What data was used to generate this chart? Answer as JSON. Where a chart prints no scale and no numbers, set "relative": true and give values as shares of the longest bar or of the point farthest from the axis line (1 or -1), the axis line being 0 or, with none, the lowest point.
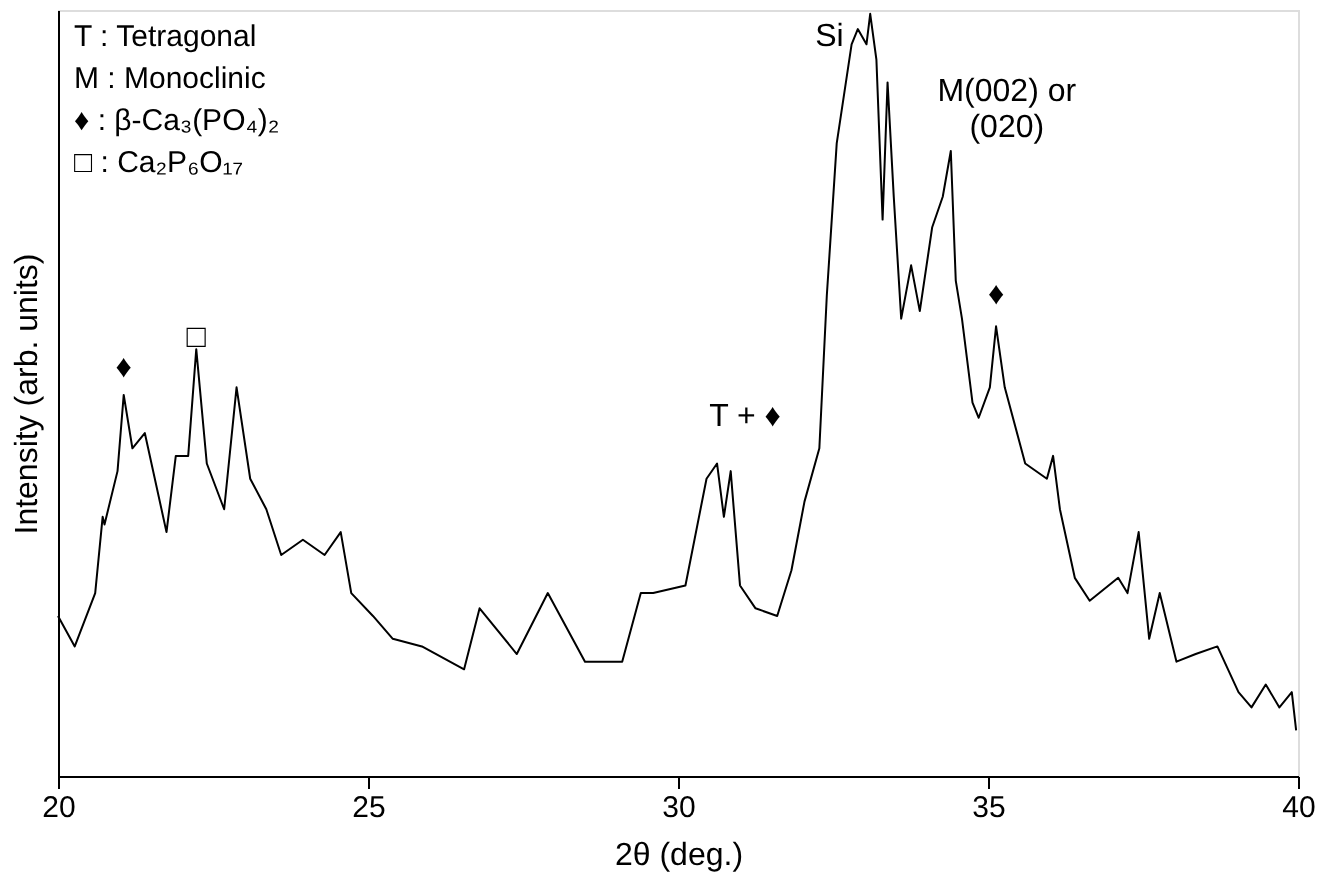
{
  "chart_data": {
    "type": "line",
    "relative": true,
    "xlabel": "2θ (deg.)",
    "ylabel": "Intensity (arb. units)",
    "xlim": [
      20,
      40
    ],
    "xticks": [
      20,
      25,
      30,
      35,
      40
    ],
    "grid": false,
    "legend": false,
    "x": [
      20.0,
      20.27,
      20.6,
      20.72,
      20.75,
      20.96,
      21.06,
      21.2,
      21.4,
      21.75,
      21.9,
      22.1,
      22.23,
      22.4,
      22.68,
      22.88,
      23.1,
      23.36,
      23.6,
      23.95,
      24.3,
      24.56,
      24.73,
      25.08,
      25.4,
      25.87,
      26.55,
      26.8,
      27.4,
      27.9,
      28.5,
      29.1,
      29.4,
      29.6,
      30.12,
      30.46,
      30.63,
      30.74,
      30.85,
      31.0,
      31.25,
      31.6,
      31.83,
      32.04,
      32.28,
      32.4,
      32.56,
      32.8,
      32.9,
      33.04,
      33.1,
      33.2,
      33.3,
      33.38,
      33.48,
      33.6,
      33.76,
      33.9,
      34.1,
      34.27,
      34.4,
      34.48,
      34.58,
      34.75,
      34.85,
      35.03,
      35.13,
      35.27,
      35.6,
      35.95,
      36.05,
      36.16,
      36.4,
      36.64,
      37.1,
      37.25,
      37.43,
      37.6,
      37.77,
      38.04,
      38.35,
      38.7,
      39.04,
      39.25,
      39.48,
      39.7,
      39.9,
      39.97
    ],
    "series": [
      {
        "color": "#000000",
        "values": [
          0.21,
          0.17,
          0.24,
          0.34,
          0.33,
          0.4,
          0.5,
          0.43,
          0.45,
          0.32,
          0.42,
          0.42,
          0.56,
          0.41,
          0.35,
          0.51,
          0.39,
          0.35,
          0.29,
          0.31,
          0.29,
          0.32,
          0.24,
          0.21,
          0.18,
          0.17,
          0.14,
          0.22,
          0.16,
          0.24,
          0.15,
          0.15,
          0.24,
          0.24,
          0.25,
          0.39,
          0.41,
          0.34,
          0.4,
          0.25,
          0.22,
          0.21,
          0.27,
          0.36,
          0.43,
          0.63,
          0.83,
          0.96,
          0.98,
          0.96,
          1.0,
          0.94,
          0.73,
          0.91,
          0.76,
          0.6,
          0.67,
          0.61,
          0.72,
          0.76,
          0.82,
          0.65,
          0.6,
          0.49,
          0.47,
          0.51,
          0.59,
          0.51,
          0.41,
          0.39,
          0.42,
          0.35,
          0.26,
          0.23,
          0.26,
          0.24,
          0.32,
          0.18,
          0.24,
          0.15,
          0.16,
          0.17,
          0.11,
          0.09,
          0.12,
          0.09,
          0.11,
          0.06
        ]
      }
    ],
    "annotations": [
      "T : Tetragonal",
      "M : Monoclinic",
      "♦ : β-Ca₃(PO₄)₂",
      "□ : Ca₂P₆O₁₇",
      {
        "text": "♦",
        "x": 21.06,
        "y": 0.5
      },
      {
        "text": "□",
        "x": 22.23,
        "y": 0.56
      },
      {
        "text": "T + ♦",
        "x": 30.63,
        "y": 0.41
      },
      {
        "text": "Si",
        "x": 32.8,
        "y": 0.96
      },
      {
        "text": "M(002) or\n(020)",
        "x": 34.4,
        "y": 0.82
      },
      {
        "text": "♦",
        "x": 35.13,
        "y": 0.59
      }
    ]
  }
}
